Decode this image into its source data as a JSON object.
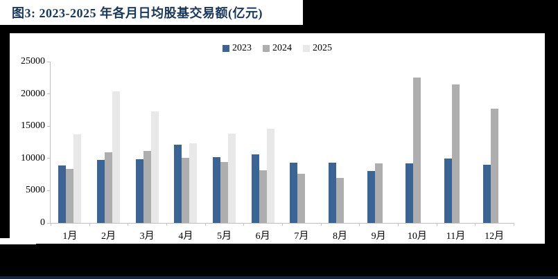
{
  "page": {
    "background_color": "#000000",
    "panel_color": "#ffffff",
    "footer_rule_color": "#16243d"
  },
  "header": {
    "title": "图3: 2023-2025 年各月日均股基交易额(亿元)",
    "title_color": "#17375e"
  },
  "chart_data": {
    "type": "bar",
    "title": "2023-2025 年各月日均股基交易额(亿元)",
    "categories": [
      "1月",
      "2月",
      "3月",
      "4月",
      "5月",
      "6月",
      "7月",
      "8月",
      "9月",
      "10月",
      "11月",
      "12月"
    ],
    "series": [
      {
        "name": "2023",
        "color": "#3a6396",
        "values": [
          8900,
          9800,
          9900,
          12100,
          10200,
          10600,
          9300,
          9300,
          8100,
          9200,
          10000,
          9000
        ]
      },
      {
        "name": "2024",
        "color": "#aeaeae",
        "values": [
          8400,
          10900,
          11200,
          10100,
          9400,
          8200,
          7600,
          7000,
          9200,
          22500,
          21500,
          17700
        ]
      },
      {
        "name": "2025",
        "color": "#e8e8e8",
        "values": [
          13700,
          20400,
          17300,
          12300,
          13800,
          14600,
          null,
          null,
          null,
          null,
          null,
          null
        ]
      }
    ],
    "xlabel": "",
    "ylabel": "",
    "ylim": [
      0,
      25000
    ],
    "yticks": [
      0,
      5000,
      10000,
      15000,
      20000,
      25000
    ],
    "grid": false,
    "legend_position": "top-center",
    "axis_color": "#bfbfbf"
  }
}
